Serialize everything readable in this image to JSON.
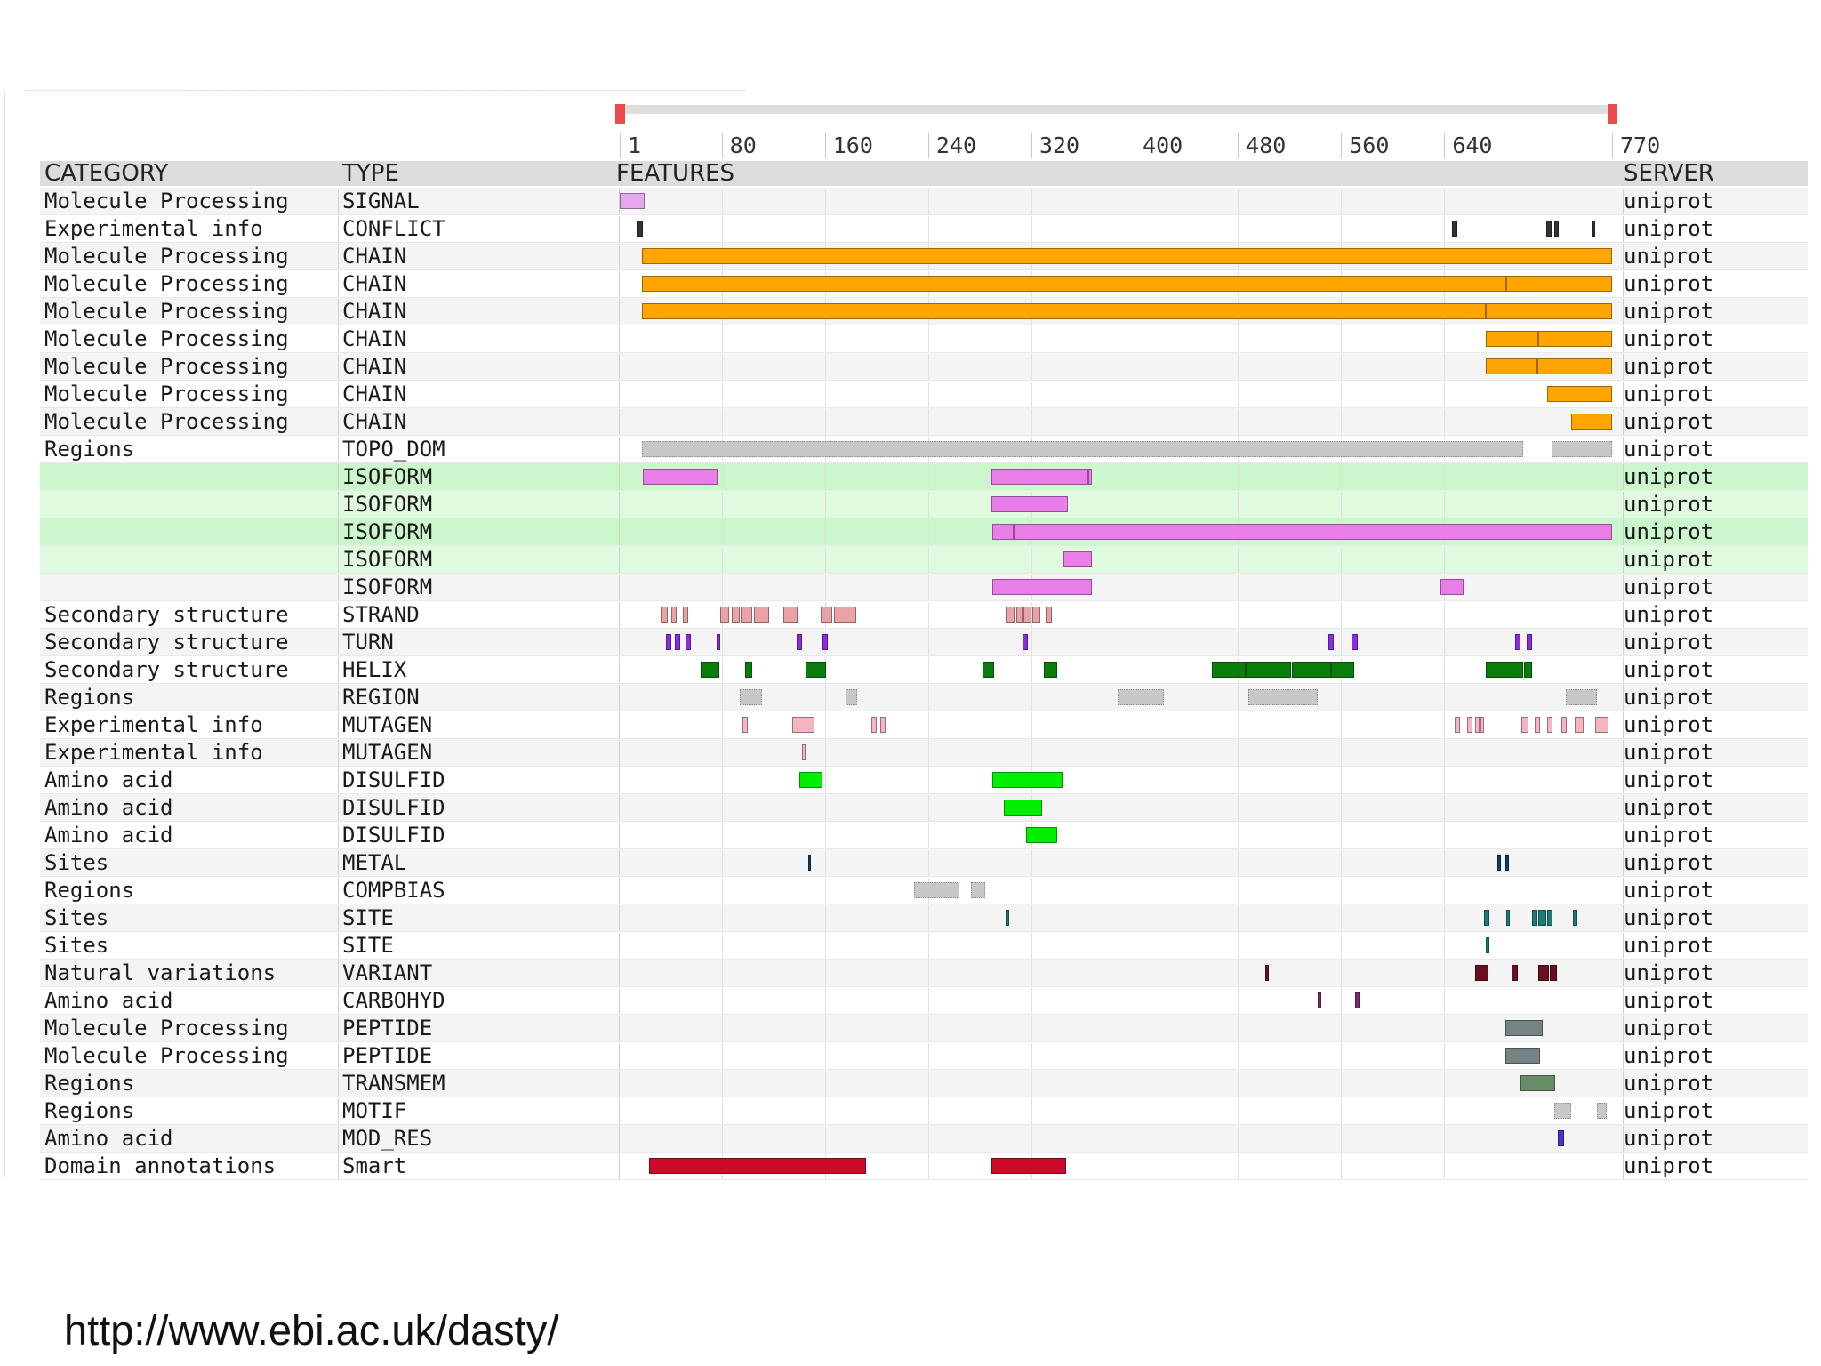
{
  "header": {
    "category": "CATEGORY",
    "type": "TYPE",
    "features": "FEATURES",
    "server": "SERVER"
  },
  "scale": {
    "min": 1,
    "max": 770,
    "tick_labels": [
      "1",
      "80",
      "160",
      "240",
      "320",
      "400",
      "480",
      "560",
      "640",
      "770"
    ],
    "tick_values": [
      1,
      80,
      160,
      240,
      320,
      400,
      480,
      560,
      640,
      770
    ]
  },
  "colors": {
    "signal": "#e6a8ec",
    "conflict": "#333333",
    "chain": "#ffa500",
    "topo": "#c8c8c8",
    "isoform": "#ea7ee8",
    "strand": "#e8a4a4",
    "turn": "#8a2be2",
    "helix": "#0a7d0a",
    "region": "#c8c8c8",
    "mutagen": "#f4b4c0",
    "disulfid": "#00ee00",
    "metal": "#123a5a",
    "compbias": "#c8c8c8",
    "site": "#1d7a7a",
    "variant": "#6a0f1f",
    "carbohyd": "#7a2d6a",
    "peptide": "#748484",
    "transmem": "#688c68",
    "motif": "#c8c8c8",
    "mod_res": "#4b32c8",
    "smart": "#cc0a2a",
    "row_green": "#ccf7cc",
    "row_green_light": "#e0fae0",
    "row_alt": "#f4f4f4"
  },
  "rows": [
    {
      "category": "Molecule Processing",
      "type": "SIGNAL",
      "server": "uniprot",
      "bg": "alt",
      "color": "signal",
      "features": [
        [
          1,
          20
        ]
      ]
    },
    {
      "category": "Experimental info",
      "type": "CONFLICT",
      "server": "uniprot",
      "bg": "white",
      "color": "conflict",
      "features": [
        [
          14,
          19
        ],
        [
          646,
          650
        ],
        [
          719,
          723
        ],
        [
          725,
          729
        ],
        [
          755,
          757
        ]
      ]
    },
    {
      "category": "Molecule Processing",
      "type": "CHAIN",
      "server": "uniprot",
      "bg": "alt",
      "color": "chain",
      "features": [
        [
          18,
          770
        ]
      ]
    },
    {
      "category": "Molecule Processing",
      "type": "CHAIN",
      "server": "uniprot",
      "bg": "white",
      "color": "chain",
      "features": [
        [
          18,
          688
        ],
        [
          688,
          770
        ]
      ]
    },
    {
      "category": "Molecule Processing",
      "type": "CHAIN",
      "server": "uniprot",
      "bg": "alt",
      "color": "chain",
      "features": [
        [
          18,
          672
        ],
        [
          672,
          770
        ]
      ]
    },
    {
      "category": "Molecule Processing",
      "type": "CHAIN",
      "server": "uniprot",
      "bg": "white",
      "color": "chain",
      "features": [
        [
          672,
          713
        ],
        [
          713,
          770
        ]
      ]
    },
    {
      "category": "Molecule Processing",
      "type": "CHAIN",
      "server": "uniprot",
      "bg": "alt",
      "color": "chain",
      "features": [
        [
          672,
          712
        ],
        [
          712,
          770
        ]
      ]
    },
    {
      "category": "Molecule Processing",
      "type": "CHAIN",
      "server": "uniprot",
      "bg": "white",
      "color": "chain",
      "features": [
        [
          720,
          770
        ]
      ]
    },
    {
      "category": "Molecule Processing",
      "type": "CHAIN",
      "server": "uniprot",
      "bg": "alt",
      "color": "chain",
      "features": [
        [
          738,
          770
        ]
      ]
    },
    {
      "category": "Regions",
      "type": "TOPO_DOM",
      "server": "uniprot",
      "bg": "white",
      "color": "topo",
      "features": [
        [
          18,
          701
        ],
        [
          723,
          770
        ]
      ]
    },
    {
      "category": "",
      "type": "ISOFORM",
      "server": "uniprot",
      "bg": "green",
      "color": "isoform",
      "features": [
        [
          19,
          77
        ],
        [
          289,
          364
        ],
        [
          364,
          367
        ]
      ]
    },
    {
      "category": "",
      "type": "ISOFORM",
      "server": "uniprot",
      "bg": "green_light",
      "color": "isoform",
      "features": [
        [
          289,
          348
        ]
      ]
    },
    {
      "category": "",
      "type": "ISOFORM",
      "server": "uniprot",
      "bg": "green",
      "color": "isoform",
      "features": [
        [
          290,
          306
        ],
        [
          306,
          770
        ]
      ]
    },
    {
      "category": "",
      "type": "ISOFORM",
      "server": "uniprot",
      "bg": "green_light",
      "color": "isoform",
      "features": [
        [
          345,
          367
        ]
      ]
    },
    {
      "category": "",
      "type": "ISOFORM",
      "server": "uniprot",
      "bg": "alt",
      "color": "isoform",
      "features": [
        [
          290,
          367
        ],
        [
          637,
          655
        ]
      ]
    },
    {
      "category": "Secondary structure",
      "type": "STRAND",
      "server": "uniprot",
      "bg": "white",
      "color": "strand",
      "features": [
        [
          33,
          38
        ],
        [
          41,
          45
        ],
        [
          50,
          54
        ],
        [
          79,
          86
        ],
        [
          88,
          94
        ],
        [
          95,
          104
        ],
        [
          105,
          117
        ],
        [
          128,
          139
        ],
        [
          157,
          166
        ],
        [
          167,
          184
        ],
        [
          300,
          307
        ],
        [
          308,
          313
        ],
        [
          314,
          320
        ],
        [
          321,
          327
        ],
        [
          331,
          336
        ]
      ]
    },
    {
      "category": "Secondary structure",
      "type": "TURN",
      "server": "uniprot",
      "bg": "alt",
      "color": "turn",
      "features": [
        [
          37,
          41
        ],
        [
          44,
          48
        ],
        [
          52,
          56
        ],
        [
          76,
          79
        ],
        [
          138,
          142
        ],
        [
          158,
          162
        ],
        [
          313,
          317
        ],
        [
          550,
          554
        ],
        [
          568,
          573
        ],
        [
          695,
          699
        ],
        [
          704,
          708
        ]
      ]
    },
    {
      "category": "Secondary structure",
      "type": "HELIX",
      "server": "uniprot",
      "bg": "white",
      "color": "helix",
      "features": [
        [
          64,
          78
        ],
        [
          98,
          104
        ],
        [
          145,
          161
        ],
        [
          282,
          291
        ],
        [
          330,
          340
        ],
        [
          460,
          486
        ],
        [
          486,
          521
        ],
        [
          522,
          552
        ],
        [
          552,
          570
        ],
        [
          672,
          701
        ],
        [
          702,
          708
        ]
      ]
    },
    {
      "category": "Regions",
      "type": "REGION",
      "server": "uniprot",
      "bg": "alt",
      "color": "region",
      "features": [
        [
          94,
          111
        ],
        [
          176,
          185
        ],
        [
          387,
          423
        ],
        [
          488,
          542
        ],
        [
          734,
          758
        ]
      ]
    },
    {
      "category": "Experimental info",
      "type": "MUTAGEN",
      "server": "uniprot",
      "bg": "white",
      "color": "mutagen",
      "features": [
        [
          96,
          100
        ],
        [
          135,
          152
        ],
        [
          196,
          200
        ],
        [
          203,
          207
        ],
        [
          648,
          652
        ],
        [
          658,
          662
        ],
        [
          664,
          667
        ],
        [
          668,
          671
        ],
        [
          700,
          705
        ],
        [
          710,
          714
        ],
        [
          720,
          724
        ],
        [
          731,
          735
        ],
        [
          741,
          748
        ],
        [
          757,
          767
        ]
      ]
    },
    {
      "category": "Experimental info",
      "type": "MUTAGEN",
      "server": "uniprot",
      "bg": "alt",
      "color": "mutagen",
      "features": [
        [
          142,
          145
        ]
      ]
    },
    {
      "category": "Amino acid",
      "type": "DISULFID",
      "server": "uniprot",
      "bg": "white",
      "color": "disulfid",
      "features": [
        [
          140,
          158
        ],
        [
          290,
          344
        ]
      ]
    },
    {
      "category": "Amino acid",
      "type": "DISULFID",
      "server": "uniprot",
      "bg": "alt",
      "color": "disulfid",
      "features": [
        [
          299,
          328
        ]
      ]
    },
    {
      "category": "Amino acid",
      "type": "DISULFID",
      "server": "uniprot",
      "bg": "white",
      "color": "disulfid",
      "features": [
        [
          316,
          340
        ]
      ]
    },
    {
      "category": "Sites",
      "type": "METAL",
      "server": "uniprot",
      "bg": "alt",
      "color": "metal",
      "features": [
        [
          147,
          149
        ],
        [
          681,
          684
        ],
        [
          687,
          690
        ]
      ]
    },
    {
      "category": "Regions",
      "type": "COMPBIAS",
      "server": "uniprot",
      "bg": "white",
      "color": "compbias",
      "features": [
        [
          229,
          264
        ],
        [
          273,
          284
        ]
      ]
    },
    {
      "category": "Sites",
      "type": "SITE",
      "server": "uniprot",
      "bg": "alt",
      "color": "site",
      "features": [
        [
          300,
          303
        ],
        [
          671,
          675
        ],
        [
          688,
          691
        ],
        [
          708,
          712
        ],
        [
          713,
          719
        ],
        [
          720,
          724
        ],
        [
          740,
          743
        ]
      ]
    },
    {
      "category": "Sites",
      "type": "SITE",
      "server": "uniprot",
      "bg": "white",
      "color": "site",
      "features": [
        [
          672,
          675
        ]
      ]
    },
    {
      "category": "Natural variations",
      "type": "VARIANT",
      "server": "uniprot",
      "bg": "alt",
      "color": "variant",
      "features": [
        [
          501,
          504
        ],
        [
          664,
          674
        ],
        [
          692,
          697
        ],
        [
          713,
          721
        ],
        [
          722,
          727
        ]
      ]
    },
    {
      "category": "Amino acid",
      "type": "CARBOHYD",
      "server": "uniprot",
      "bg": "white",
      "color": "carbohyd",
      "features": [
        [
          542,
          545
        ],
        [
          571,
          574
        ]
      ]
    },
    {
      "category": "Molecule Processing",
      "type": "PEPTIDE",
      "server": "uniprot",
      "bg": "alt",
      "color": "peptide",
      "features": [
        [
          687,
          716
        ]
      ]
    },
    {
      "category": "Molecule Processing",
      "type": "PEPTIDE",
      "server": "uniprot",
      "bg": "white",
      "color": "peptide",
      "features": [
        [
          687,
          714
        ]
      ]
    },
    {
      "category": "Regions",
      "type": "TRANSMEM",
      "server": "uniprot",
      "bg": "alt",
      "color": "transmem",
      "features": [
        [
          699,
          726
        ]
      ]
    },
    {
      "category": "Regions",
      "type": "MOTIF",
      "server": "uniprot",
      "bg": "white",
      "color": "motif",
      "features": [
        [
          725,
          738
        ],
        [
          758,
          766
        ]
      ]
    },
    {
      "category": "Amino acid",
      "type": "MOD_RES",
      "server": "uniprot",
      "bg": "alt",
      "color": "mod_res",
      "features": [
        [
          728,
          733
        ]
      ]
    },
    {
      "category": "Domain annotations",
      "type": "Smart",
      "server": "uniprot",
      "bg": "white",
      "color": "smart",
      "features": [
        [
          24,
          192
        ],
        [
          289,
          347
        ]
      ]
    }
  ],
  "footer": {
    "url": "http://www.ebi.ac.uk/dasty/"
  }
}
